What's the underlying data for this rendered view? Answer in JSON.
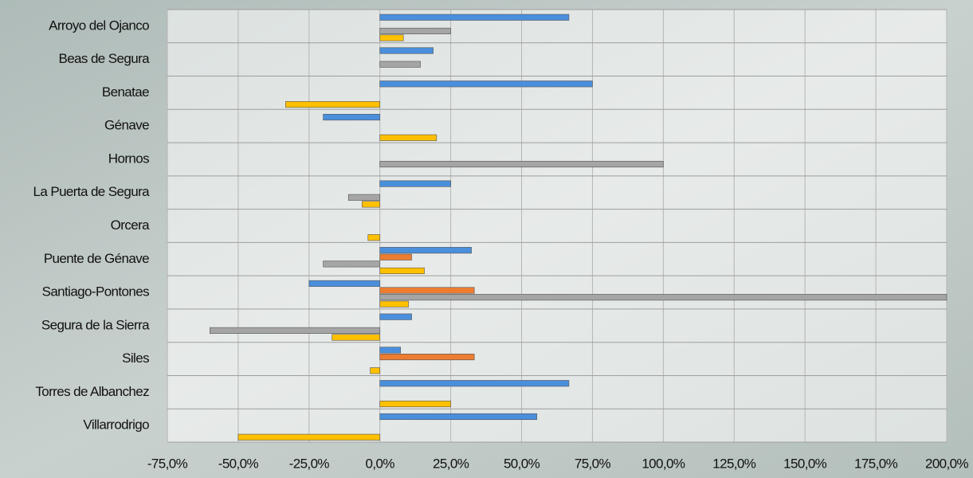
{
  "chart_data": {
    "type": "hbar",
    "categories": [
      "Arroyo del Ojanco",
      "Beas de Segura",
      "Benatae",
      "Génave",
      "Hornos",
      "La Puerta de Segura",
      "Orcera",
      "Puente de Génave",
      "Santiago-Pontones",
      "Segura de la Sierra",
      "Siles",
      "Torres de Albanchez",
      "Villarrodrigo"
    ],
    "series": [
      {
        "color": "#4a8fdc",
        "values": [
          66.7,
          18.8,
          75,
          -20,
          0,
          25,
          0,
          32.3,
          -25,
          11.2,
          7.3,
          66.7,
          55.4
        ]
      },
      {
        "color": "#ed7d31",
        "values": [
          0,
          0,
          0,
          0,
          0,
          0,
          0,
          11.2,
          33.3,
          0,
          33.3,
          0,
          0
        ]
      },
      {
        "color": "#a5a5a5",
        "values": [
          25,
          14.3,
          0,
          0,
          100,
          -11.1,
          0,
          -20,
          200,
          -60,
          0,
          0,
          0
        ]
      },
      {
        "color": "#ffc000",
        "values": [
          8.3,
          0,
          -33.3,
          20,
          0,
          -6.3,
          -4.2,
          15.7,
          10.1,
          -16.9,
          -3.4,
          25,
          -50
        ]
      }
    ],
    "xlim": [
      -75,
      200
    ],
    "xticks": [
      {
        "value": -75,
        "label": "-75,0%"
      },
      {
        "value": -50,
        "label": "-50,0%"
      },
      {
        "value": -25,
        "label": "-25,0%"
      },
      {
        "value": 0,
        "label": "0,0%"
      },
      {
        "value": 25,
        "label": "25,0%"
      },
      {
        "value": 50,
        "label": "50,0%"
      },
      {
        "value": 75,
        "label": "75,0%"
      },
      {
        "value": 100,
        "label": "100,0%"
      },
      {
        "value": 125,
        "label": "125,0%"
      },
      {
        "value": 150,
        "label": "150,0%"
      },
      {
        "value": 175,
        "label": "175,0%"
      },
      {
        "value": 200,
        "label": "200,0%"
      }
    ],
    "grid": true
  }
}
